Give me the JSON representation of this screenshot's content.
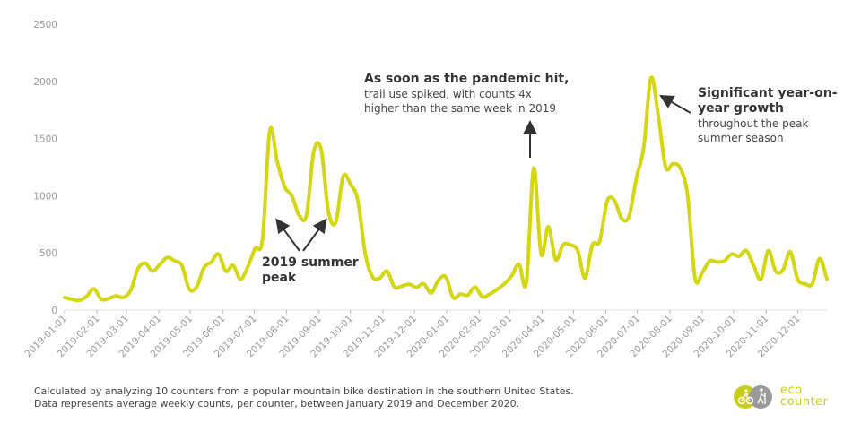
{
  "chart_data": {
    "type": "line",
    "title": "",
    "xlabel": "",
    "ylabel": "",
    "ylim": [
      0,
      2500
    ],
    "yticks": [
      "0",
      "500",
      "1000",
      "1500",
      "2000",
      "2500"
    ],
    "xticks": [
      "2019-01-01",
      "2019-02-01",
      "2019-03-01",
      "2019-04-01",
      "2019-05-01",
      "2019-06-01",
      "2019-07-01",
      "2019-08-01",
      "2019-09-01",
      "2019-10-01",
      "2019-11-01",
      "2019-12-01",
      "2020-01-01",
      "2020-02-01",
      "2020-03-01",
      "2020-04-01",
      "2020-05-01",
      "2020-06-01",
      "2020-07-01",
      "2020-08-01",
      "2020-09-01",
      "2020-10-01",
      "2020-11-01",
      "2020-12-01"
    ],
    "grid": false,
    "series": [
      {
        "color": "#d4d610",
        "points": [
          [
            "2019-01-01",
            110
          ],
          [
            "2019-01-08",
            95
          ],
          [
            "2019-01-15",
            85
          ],
          [
            "2019-01-22",
            120
          ],
          [
            "2019-01-29",
            185
          ],
          [
            "2019-02-05",
            95
          ],
          [
            "2019-02-12",
            100
          ],
          [
            "2019-02-19",
            125
          ],
          [
            "2019-02-26",
            110
          ],
          [
            "2019-03-05",
            170
          ],
          [
            "2019-03-12",
            360
          ],
          [
            "2019-03-19",
            410
          ],
          [
            "2019-03-26",
            340
          ],
          [
            "2019-04-02",
            400
          ],
          [
            "2019-04-09",
            460
          ],
          [
            "2019-04-16",
            430
          ],
          [
            "2019-04-23",
            390
          ],
          [
            "2019-04-30",
            185
          ],
          [
            "2019-05-07",
            200
          ],
          [
            "2019-05-14",
            370
          ],
          [
            "2019-05-21",
            420
          ],
          [
            "2019-05-28",
            490
          ],
          [
            "2019-06-04",
            340
          ],
          [
            "2019-06-11",
            390
          ],
          [
            "2019-06-18",
            270
          ],
          [
            "2019-06-25",
            380
          ],
          [
            "2019-07-02",
            540
          ],
          [
            "2019-07-09",
            620
          ],
          [
            "2019-07-16",
            1570
          ],
          [
            "2019-07-23",
            1300
          ],
          [
            "2019-07-30",
            1080
          ],
          [
            "2019-08-06",
            1000
          ],
          [
            "2019-08-13",
            830
          ],
          [
            "2019-08-20",
            830
          ],
          [
            "2019-08-27",
            1390
          ],
          [
            "2019-09-03",
            1400
          ],
          [
            "2019-09-10",
            860
          ],
          [
            "2019-09-17",
            770
          ],
          [
            "2019-09-24",
            1170
          ],
          [
            "2019-10-01",
            1100
          ],
          [
            "2019-10-08",
            960
          ],
          [
            "2019-10-15",
            500
          ],
          [
            "2019-10-22",
            290
          ],
          [
            "2019-10-29",
            280
          ],
          [
            "2019-11-05",
            340
          ],
          [
            "2019-11-12",
            200
          ],
          [
            "2019-11-19",
            210
          ],
          [
            "2019-11-26",
            225
          ],
          [
            "2019-12-03",
            200
          ],
          [
            "2019-12-10",
            230
          ],
          [
            "2019-12-17",
            150
          ],
          [
            "2019-12-24",
            260
          ],
          [
            "2019-12-31",
            290
          ],
          [
            "2020-01-07",
            110
          ],
          [
            "2020-01-14",
            140
          ],
          [
            "2020-01-21",
            130
          ],
          [
            "2020-01-28",
            200
          ],
          [
            "2020-02-04",
            115
          ],
          [
            "2020-02-11",
            140
          ],
          [
            "2020-02-18",
            180
          ],
          [
            "2020-02-25",
            230
          ],
          [
            "2020-03-03",
            300
          ],
          [
            "2020-03-10",
            400
          ],
          [
            "2020-03-17",
            240
          ],
          [
            "2020-03-24",
            1240
          ],
          [
            "2020-03-31",
            490
          ],
          [
            "2020-04-07",
            730
          ],
          [
            "2020-04-14",
            440
          ],
          [
            "2020-04-21",
            570
          ],
          [
            "2020-04-28",
            570
          ],
          [
            "2020-05-05",
            520
          ],
          [
            "2020-05-12",
            280
          ],
          [
            "2020-05-19",
            570
          ],
          [
            "2020-05-26",
            600
          ],
          [
            "2020-06-02",
            950
          ],
          [
            "2020-06-09",
            960
          ],
          [
            "2020-06-16",
            800
          ],
          [
            "2020-06-23",
            820
          ],
          [
            "2020-06-30",
            1150
          ],
          [
            "2020-07-07",
            1420
          ],
          [
            "2020-07-14",
            2030
          ],
          [
            "2020-07-21",
            1700
          ],
          [
            "2020-07-28",
            1250
          ],
          [
            "2020-08-04",
            1280
          ],
          [
            "2020-08-11",
            1240
          ],
          [
            "2020-08-18",
            1000
          ],
          [
            "2020-08-25",
            280
          ],
          [
            "2020-09-01",
            330
          ],
          [
            "2020-09-08",
            430
          ],
          [
            "2020-09-15",
            420
          ],
          [
            "2020-09-22",
            430
          ],
          [
            "2020-09-29",
            490
          ],
          [
            "2020-10-06",
            470
          ],
          [
            "2020-10-13",
            520
          ],
          [
            "2020-10-20",
            390
          ],
          [
            "2020-10-27",
            270
          ],
          [
            "2020-11-03",
            520
          ],
          [
            "2020-11-10",
            340
          ],
          [
            "2020-11-17",
            350
          ],
          [
            "2020-11-24",
            510
          ],
          [
            "2020-12-01",
            270
          ],
          [
            "2020-12-08",
            230
          ],
          [
            "2020-12-15",
            230
          ],
          [
            "2020-12-22",
            450
          ],
          [
            "2020-12-29",
            270
          ]
        ]
      }
    ],
    "annotations": {
      "summer_2019": [
        "2019 summer",
        "peak"
      ],
      "pandemic_bold": "As soon as the pandemic hit,",
      "pandemic_text": [
        "trail use spiked, with counts 4x",
        "higher than the same week in 2019"
      ],
      "growth_bold": [
        "Significant year-on-",
        "year growth"
      ],
      "growth_text": [
        "throughout  the peak",
        "summer season"
      ]
    }
  },
  "footer": {
    "line1": "Calculated by analyzing 10 counters from a popular mountain bike destination in the southern United States.",
    "line2": "Data represents average weekly counts, per counter, between January 2019 and December 2020."
  },
  "logo": {
    "line1": "eco",
    "line2": "counter",
    "color": "#c9cc1a",
    "icon": "bike-hiker-icon"
  }
}
